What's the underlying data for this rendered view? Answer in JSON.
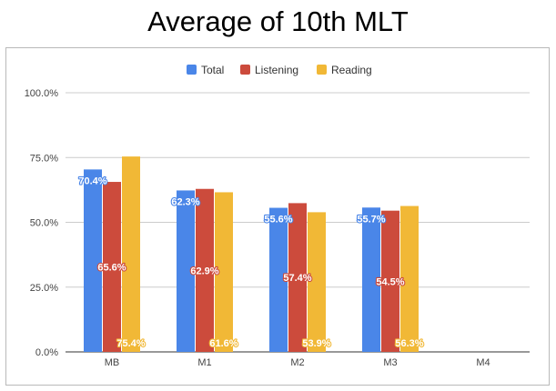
{
  "chart_data": {
    "type": "bar",
    "title": "Average of 10th MLT",
    "categories": [
      "MB",
      "M1",
      "M2",
      "M3",
      "M4"
    ],
    "series": [
      {
        "name": "Total",
        "color": "#4a86e8",
        "values": [
          70.4,
          62.3,
          55.6,
          55.7,
          null
        ],
        "labels": [
          "70.4%",
          "62.3%",
          "55.6%",
          "55.7%",
          ""
        ]
      },
      {
        "name": "Listening",
        "color": "#cc4b3c",
        "values": [
          65.6,
          62.9,
          57.4,
          54.5,
          null
        ],
        "labels": [
          "65.6%",
          "62.9%",
          "57.4%",
          "54.5%",
          ""
        ]
      },
      {
        "name": "Reading",
        "color": "#f1b836",
        "values": [
          75.4,
          61.6,
          53.9,
          56.3,
          null
        ],
        "labels": [
          "75.4%",
          "61.6%",
          "53.9%",
          "56.3%",
          ""
        ]
      }
    ],
    "yticks": [
      "0.0%",
      "25.0%",
      "50.0%",
      "75.0%",
      "100.0%"
    ],
    "ytick_values": [
      0,
      25,
      50,
      75,
      100
    ],
    "ylim": [
      0,
      100
    ],
    "grid": true,
    "legend": "top",
    "xlabel": "",
    "ylabel": ""
  }
}
